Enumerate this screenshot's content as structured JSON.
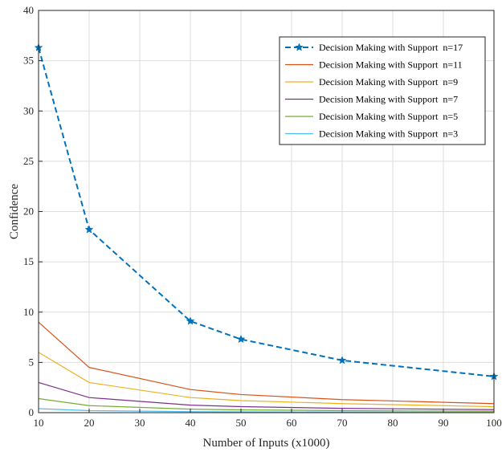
{
  "chart_data": {
    "type": "line",
    "title": "",
    "xlabel": "Number of Inputs (x1000)",
    "ylabel": "Confidence",
    "xlim": [
      10,
      100
    ],
    "ylim": [
      0,
      40
    ],
    "xticks": [
      10,
      20,
      30,
      40,
      50,
      60,
      70,
      80,
      90,
      100
    ],
    "yticks": [
      0,
      5,
      10,
      15,
      20,
      25,
      30,
      35,
      40
    ],
    "grid": true,
    "legend_position": "top-right",
    "series": [
      {
        "name": "Decision Making with Support  n=17",
        "color": "#0072BD",
        "style": "dashed",
        "marker": "star",
        "x": [
          10,
          20,
          40,
          50,
          70,
          100
        ],
        "y": [
          36.3,
          18.2,
          9.1,
          7.3,
          5.2,
          3.6
        ]
      },
      {
        "name": "Decision Making with Support  n=11",
        "color": "#D95319",
        "style": "solid",
        "marker": "none",
        "x": [
          10,
          20,
          40,
          50,
          70,
          100
        ],
        "y": [
          9.0,
          4.5,
          2.3,
          1.8,
          1.3,
          0.9
        ]
      },
      {
        "name": "Decision Making with Support  n=9",
        "color": "#EDB120",
        "style": "solid",
        "marker": "none",
        "x": [
          10,
          20,
          40,
          50,
          70,
          100
        ],
        "y": [
          6.0,
          3.0,
          1.5,
          1.2,
          0.9,
          0.6
        ]
      },
      {
        "name": "Decision Making with Support  n=7",
        "color": "#7E2F8E",
        "style": "solid",
        "marker": "none",
        "x": [
          10,
          20,
          40,
          50,
          70,
          100
        ],
        "y": [
          3.0,
          1.5,
          0.75,
          0.6,
          0.43,
          0.3
        ]
      },
      {
        "name": "Decision Making with Support  n=5",
        "color": "#77AC30",
        "style": "solid",
        "marker": "none",
        "x": [
          10,
          20,
          40,
          50,
          70,
          100
        ],
        "y": [
          1.4,
          0.7,
          0.35,
          0.28,
          0.2,
          0.14
        ]
      },
      {
        "name": "Decision Making with Support  n=3",
        "color": "#4DBEEE",
        "style": "solid",
        "marker": "none",
        "x": [
          10,
          20,
          40,
          50,
          70,
          100
        ],
        "y": [
          0.4,
          0.2,
          0.1,
          0.08,
          0.06,
          0.04
        ]
      }
    ]
  }
}
